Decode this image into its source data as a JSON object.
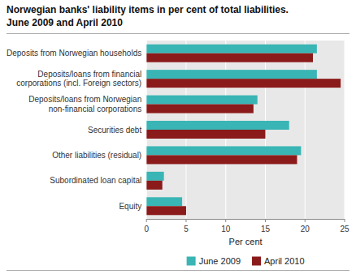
{
  "chart_data": {
    "type": "bar",
    "orientation": "horizontal",
    "title": "Norwegian banks' liability items in per cent of total liabilities.",
    "subtitle": "June 2009 and April 2010",
    "categories": [
      "Deposits from Norwegian households",
      "Deposits/loans from financial\ncorporations (incl. Foreign sectors)",
      "Deposits/loans from Norwegian\nnon-financial corporations",
      "Securities debt",
      "Other liabilities (residual)",
      "Subordinated loan capital",
      "Equity"
    ],
    "series": [
      {
        "name": "June 2009",
        "color": "#3ab5b5",
        "values": [
          21.5,
          21.5,
          14.0,
          18.0,
          19.5,
          2.2,
          4.5
        ]
      },
      {
        "name": "April 2010",
        "color": "#8b1a1a",
        "values": [
          21.0,
          24.5,
          13.5,
          15.0,
          19.0,
          2.0,
          5.0
        ]
      }
    ],
    "xlabel": "Per cent",
    "xlim": [
      0,
      25
    ],
    "xticks": [
      0,
      5,
      10,
      15,
      20,
      25
    ],
    "grid": true,
    "legend": "bottom"
  }
}
